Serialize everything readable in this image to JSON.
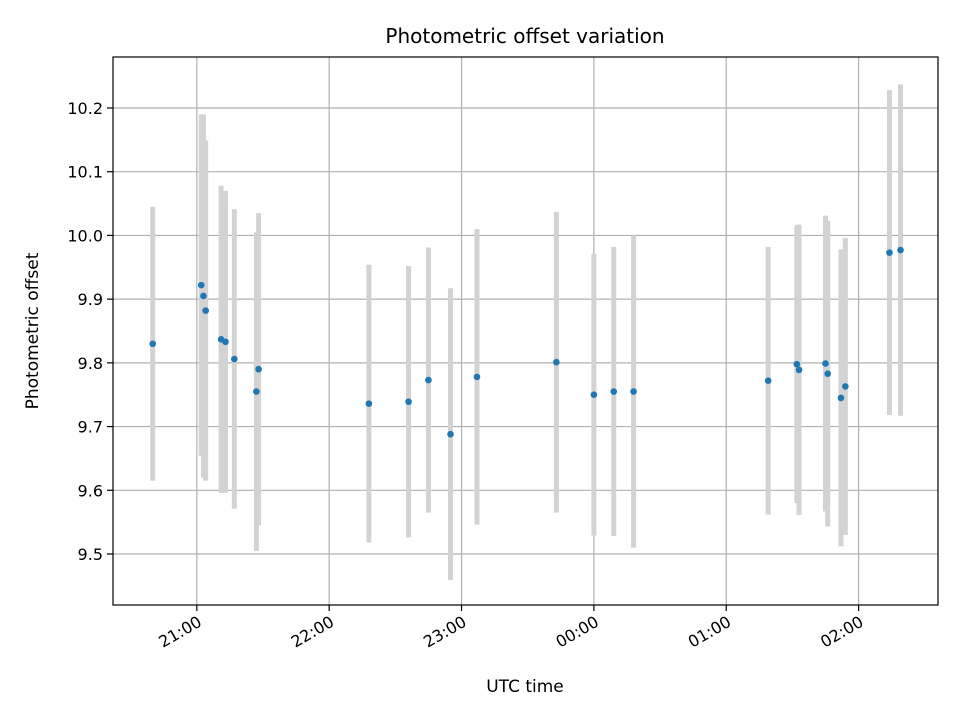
{
  "chart_data": {
    "type": "scatter",
    "title": "Photometric offset variation",
    "xlabel": "UTC time",
    "ylabel": "Photometric offset",
    "x_ticks": [
      "21:00",
      "22:00",
      "23:00",
      "00:00",
      "01:00",
      "02:00"
    ],
    "y_ticks": [
      "9.5",
      "9.6",
      "9.7",
      "9.8",
      "9.9",
      "10.0",
      "10.1",
      "10.2"
    ],
    "xlim": [
      "20:22",
      "02:36"
    ],
    "ylim": [
      9.42,
      10.28
    ],
    "grid": true,
    "colors": {
      "point": "#1f77b4",
      "errorbar": "#d3d3d3",
      "grid": "#b0b0b0"
    },
    "series": [
      {
        "points": [
          {
            "x": "20:40",
            "y": 9.83,
            "err": 0.215
          },
          {
            "x": "21:02",
            "y": 9.922,
            "err": 0.268
          },
          {
            "x": "21:03",
            "y": 9.905,
            "err": 0.285
          },
          {
            "x": "21:04",
            "y": 9.882,
            "err": 0.267
          },
          {
            "x": "21:11",
            "y": 9.837,
            "err": 0.241
          },
          {
            "x": "21:13",
            "y": 9.833,
            "err": 0.237
          },
          {
            "x": "21:17",
            "y": 9.806,
            "err": 0.235
          },
          {
            "x": "21:27",
            "y": 9.755,
            "err": 0.25
          },
          {
            "x": "21:28",
            "y": 9.79,
            "err": 0.245
          },
          {
            "x": "22:18",
            "y": 9.736,
            "err": 0.218
          },
          {
            "x": "22:36",
            "y": 9.739,
            "err": 0.213
          },
          {
            "x": "22:45",
            "y": 9.773,
            "err": 0.208
          },
          {
            "x": "22:55",
            "y": 9.688,
            "err": 0.229
          },
          {
            "x": "23:07",
            "y": 9.778,
            "err": 0.232
          },
          {
            "x": "23:43",
            "y": 9.801,
            "err": 0.236
          },
          {
            "x": "00:00",
            "y": 9.75,
            "err": 0.221
          },
          {
            "x": "00:09",
            "y": 9.755,
            "err": 0.227
          },
          {
            "x": "00:18",
            "y": 9.755,
            "err": 0.245
          },
          {
            "x": "01:19",
            "y": 9.772,
            "err": 0.21
          },
          {
            "x": "01:32",
            "y": 9.798,
            "err": 0.218
          },
          {
            "x": "01:33",
            "y": 9.789,
            "err": 0.228
          },
          {
            "x": "01:45",
            "y": 9.799,
            "err": 0.232
          },
          {
            "x": "01:46",
            "y": 9.783,
            "err": 0.24
          },
          {
            "x": "01:52",
            "y": 9.745,
            "err": 0.233
          },
          {
            "x": "01:54",
            "y": 9.763,
            "err": 0.233
          },
          {
            "x": "02:14",
            "y": 9.973,
            "err": 0.255
          },
          {
            "x": "02:19",
            "y": 9.977,
            "err": 0.26
          }
        ]
      }
    ]
  }
}
